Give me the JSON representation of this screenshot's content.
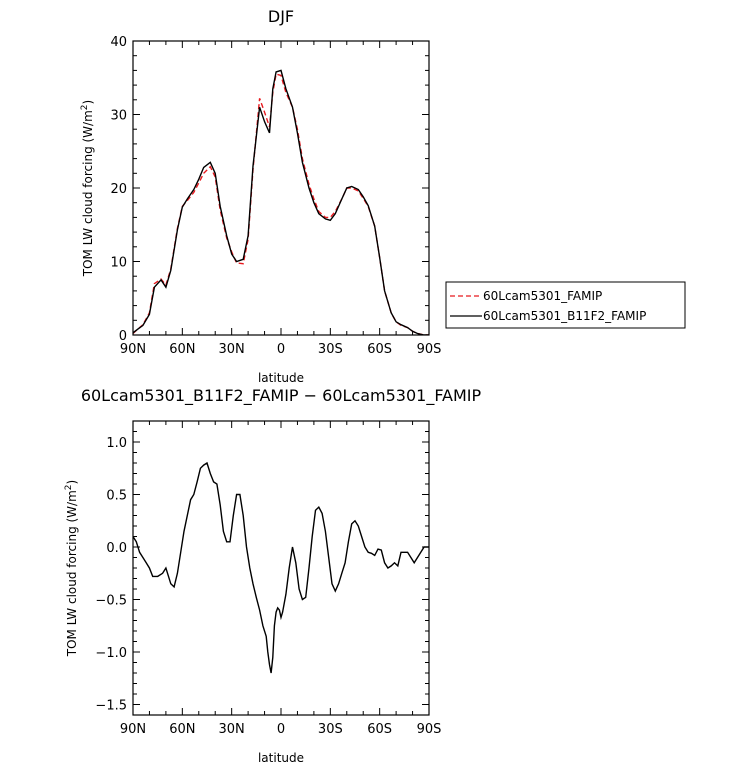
{
  "chart_data": [
    {
      "type": "line",
      "title": "DJF",
      "xlabel": "latitude",
      "ylabel": "TOM LW cloud forcing (W/m²)",
      "ylabel_main": "TOM LW cloud forcing (W/m",
      "ylabel_sup": "2",
      "ylabel_close": ")",
      "xlim": [
        90,
        -90
      ],
      "ylim": [
        0,
        40
      ],
      "xticks": [
        90,
        60,
        30,
        0,
        -30,
        -60,
        -90
      ],
      "xtick_labels": [
        "90N",
        "60N",
        "30N",
        "0",
        "30S",
        "60S",
        "90S"
      ],
      "yticks": [
        0,
        10,
        20,
        30,
        40
      ],
      "ytick_labels": [
        "0",
        "10",
        "20",
        "30",
        "40"
      ],
      "legend_position": "right-bottom, outside plot",
      "series": [
        {
          "name": "60Lcam5301_FAMIP",
          "color": "#e8191e",
          "style": "dashed",
          "x": [
            90,
            87,
            84,
            80,
            77,
            73,
            70,
            67,
            63,
            60,
            57,
            53,
            50,
            47,
            43,
            40,
            37,
            33,
            30,
            27,
            23,
            20,
            17,
            13,
            10,
            7,
            5,
            3,
            0,
            -3,
            -7,
            -10,
            -13,
            -17,
            -20,
            -23,
            -27,
            -30,
            -33,
            -37,
            -40,
            -43,
            -47,
            -50,
            -53,
            -57,
            -60,
            -63,
            -67,
            -70,
            -73,
            -77,
            -80,
            -83,
            -87,
            -90
          ],
          "y": [
            0.2,
            0.8,
            1.4,
            3.0,
            7.0,
            7.6,
            6.8,
            9.0,
            14.5,
            17.5,
            18.3,
            19.4,
            20.7,
            22.0,
            22.9,
            21.5,
            17.0,
            13.2,
            11.3,
            9.8,
            9.7,
            13.0,
            22.5,
            32.2,
            30.3,
            28.3,
            33.0,
            35.5,
            35.3,
            33.0,
            31.0,
            28.0,
            24.0,
            20.5,
            18.5,
            16.8,
            16.0,
            16.0,
            16.8,
            18.5,
            20.0,
            20.0,
            19.6,
            18.6,
            17.5,
            14.8,
            10.5,
            6.0,
            3.0,
            1.8,
            1.3,
            1.0,
            0.5,
            0.2,
            0.0,
            0.0
          ]
        },
        {
          "name": "60Lcam5301_B11F2_FAMIP",
          "color": "#000000",
          "style": "solid",
          "x": [
            90,
            87,
            84,
            80,
            77,
            73,
            70,
            67,
            63,
            60,
            57,
            53,
            50,
            47,
            43,
            40,
            37,
            33,
            30,
            27,
            23,
            20,
            17,
            13,
            10,
            7,
            5,
            3,
            0,
            -3,
            -7,
            -10,
            -13,
            -17,
            -20,
            -23,
            -27,
            -30,
            -33,
            -37,
            -40,
            -43,
            -47,
            -50,
            -53,
            -57,
            -60,
            -63,
            -67,
            -70,
            -73,
            -77,
            -80,
            -83,
            -87,
            -90
          ],
          "y": [
            0.3,
            0.8,
            1.3,
            2.8,
            6.5,
            7.5,
            6.5,
            8.8,
            14.3,
            17.4,
            18.5,
            19.8,
            21.2,
            22.8,
            23.5,
            22.0,
            17.5,
            13.5,
            11.0,
            10.0,
            10.3,
            13.5,
            23.0,
            31.0,
            29.0,
            27.5,
            33.5,
            35.8,
            36.0,
            33.5,
            31.0,
            27.5,
            23.5,
            20.0,
            18.0,
            16.5,
            15.8,
            15.6,
            16.5,
            18.5,
            20.0,
            20.2,
            19.8,
            18.8,
            17.6,
            14.8,
            10.5,
            6.0,
            3.0,
            1.8,
            1.4,
            1.0,
            0.5,
            0.2,
            0.0,
            0.0
          ]
        }
      ]
    },
    {
      "type": "line",
      "title": "60Lcam5301_B11F2_FAMIP − 60Lcam5301_FAMIP",
      "xlabel": "latitude",
      "ylabel": "TOM LW cloud forcing (W/m²)",
      "ylabel_main": "TOM LW cloud forcing (W/m",
      "ylabel_sup": "2",
      "ylabel_close": ")",
      "xlim": [
        90,
        -90
      ],
      "ylim": [
        -1.6,
        1.2
      ],
      "xticks": [
        90,
        60,
        30,
        0,
        -30,
        -60,
        -90
      ],
      "xtick_labels": [
        "90N",
        "60N",
        "30N",
        "0",
        "30S",
        "60S",
        "90S"
      ],
      "yticks": [
        -1.5,
        -1.0,
        -0.5,
        0.0,
        0.5,
        1.0
      ],
      "ytick_labels": [
        "−1.5",
        "−1.0",
        "−0.5",
        "0.0",
        "0.5",
        "1.0"
      ],
      "series": [
        {
          "color": "#000000",
          "style": "solid",
          "x": [
            90,
            88,
            86,
            84,
            82,
            80,
            78,
            75,
            72,
            70,
            67,
            65,
            63,
            61,
            59,
            57,
            55,
            53,
            51,
            49,
            47,
            45,
            43,
            41,
            39,
            37,
            35,
            33,
            31,
            29,
            27,
            25,
            23,
            21,
            19,
            17,
            15,
            13,
            11,
            9,
            8,
            7,
            6,
            5,
            4,
            3,
            2,
            1,
            0,
            -1,
            -3,
            -5,
            -7,
            -9,
            -11,
            -13,
            -15,
            -17,
            -19,
            -21,
            -23,
            -25,
            -27,
            -29,
            -31,
            -33,
            -35,
            -37,
            -39,
            -41,
            -43,
            -45,
            -47,
            -49,
            -51,
            -53,
            -55,
            -57,
            -59,
            -61,
            -63,
            -65,
            -67,
            -69,
            -71,
            -73,
            -75,
            -77,
            -79,
            -81,
            -83,
            -85,
            -87,
            -90
          ],
          "y": [
            0.1,
            0.05,
            -0.05,
            -0.1,
            -0.15,
            -0.2,
            -0.28,
            -0.28,
            -0.25,
            -0.2,
            -0.35,
            -0.38,
            -0.25,
            -0.05,
            0.15,
            0.3,
            0.45,
            0.5,
            0.62,
            0.75,
            0.78,
            0.8,
            0.7,
            0.62,
            0.6,
            0.4,
            0.15,
            0.05,
            0.05,
            0.3,
            0.5,
            0.5,
            0.3,
            0.0,
            -0.2,
            -0.35,
            -0.48,
            -0.6,
            -0.75,
            -0.85,
            -1.0,
            -1.12,
            -1.2,
            -1.05,
            -0.75,
            -0.62,
            -0.58,
            -0.6,
            -0.67,
            -0.62,
            -0.45,
            -0.2,
            0.0,
            -0.15,
            -0.4,
            -0.5,
            -0.48,
            -0.2,
            0.1,
            0.35,
            0.38,
            0.32,
            0.15,
            -0.1,
            -0.35,
            -0.42,
            -0.35,
            -0.25,
            -0.15,
            0.05,
            0.22,
            0.25,
            0.2,
            0.1,
            0.0,
            -0.05,
            -0.06,
            -0.08,
            -0.02,
            -0.03,
            -0.15,
            -0.2,
            -0.18,
            -0.15,
            -0.18,
            -0.05,
            -0.05,
            -0.05,
            -0.1,
            -0.15,
            -0.1,
            -0.05,
            0.0,
            0.0
          ]
        }
      ]
    }
  ]
}
